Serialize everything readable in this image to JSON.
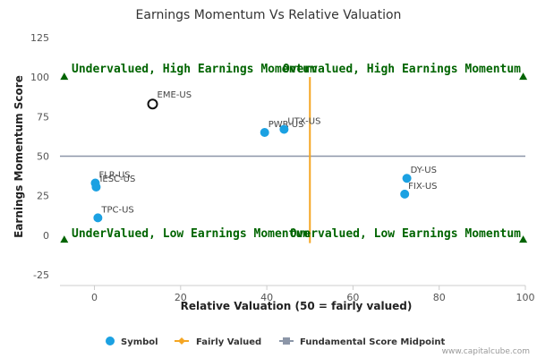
{
  "chart_data": {
    "type": "scatter",
    "title": "Earnings Momentum Vs Relative Valuation",
    "xlabel": "Relative Valuation (50 = fairly valued)",
    "ylabel": "Earnings Momentum Score",
    "xlim": [
      -8,
      100
    ],
    "ylim": [
      -25,
      125
    ],
    "x_ticks": [
      0,
      20,
      40,
      60,
      80,
      100
    ],
    "y_ticks": [
      -25,
      0,
      25,
      50,
      75,
      100,
      125
    ],
    "grid": false,
    "series": [
      {
        "name": "Symbol",
        "color": "#1ba1e2",
        "points": [
          {
            "label": "PWR-US",
            "x": 39.5,
            "y": 65
          },
          {
            "label": "UTX-US",
            "x": 44,
            "y": 67
          },
          {
            "label": "FLR-US",
            "x": 0.2,
            "y": 33
          },
          {
            "label": "IESC-US",
            "x": 0.4,
            "y": 30.5
          },
          {
            "label": "TPC-US",
            "x": 0.8,
            "y": 11
          },
          {
            "label": "DY-US",
            "x": 72.5,
            "y": 36
          },
          {
            "label": "FIX-US",
            "x": 72,
            "y": 26
          }
        ]
      },
      {
        "name": "Fairly Valued",
        "color": "#f5a623",
        "x": [
          50,
          50
        ],
        "y": [
          -5,
          100
        ]
      },
      {
        "name": "Fundamental Score Midpoint",
        "color": "#8c96a8",
        "x": [
          -8,
          100
        ],
        "y": [
          50,
          50
        ]
      }
    ],
    "highlight": {
      "label": "EME-US",
      "x": 13.5,
      "y": 83
    },
    "quadrant_markers": [
      {
        "x": -7,
        "y": 100
      },
      {
        "x": 99.5,
        "y": 100
      },
      {
        "x": -7,
        "y": -3
      },
      {
        "x": 99.5,
        "y": -3
      }
    ],
    "quadrant_labels": {
      "top_left": "Undervalued, High Earnings Momentum",
      "top_right": "Overvalued, High Earnings Momentum",
      "bottom_left": "UnderValued, Low Earnings Momentum",
      "bottom_right": "Overvalued, Low Earnings Momentum"
    },
    "legend": {
      "placement": "bottom",
      "entries": [
        "Symbol",
        "Fairly Valued",
        "Fundamental Score Midpoint"
      ]
    }
  },
  "credit": "www.capitalcube.com",
  "colors": {
    "quadrant_text": "#006400",
    "marker": "#006400"
  }
}
